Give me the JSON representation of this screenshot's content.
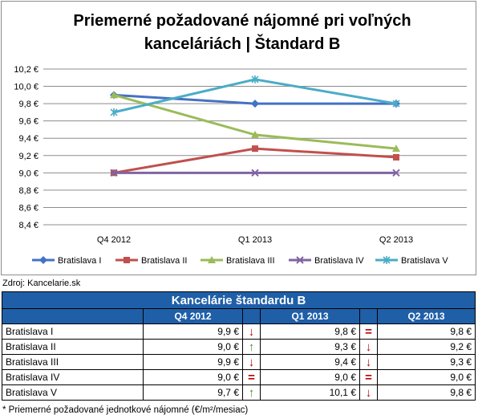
{
  "chart_data": {
    "type": "line",
    "title_line1": "Priemerné požadované nájomné pri voľných",
    "title_line2": "kancelári­ách | Štandard B",
    "categories": [
      "Q4 2012",
      "Q1 2013",
      "Q2 2013"
    ],
    "y_ticks": [
      "8,4 €",
      "8,6 €",
      "8,8 €",
      "9,0 €",
      "9,2 €",
      "9,4 €",
      "9,6 €",
      "9,8 €",
      "10,0 €",
      "10,2 €"
    ],
    "ylim": [
      8.4,
      10.2
    ],
    "grid": true,
    "legend_position": "bottom",
    "series": [
      {
        "name": "Bratislava I",
        "values": [
          9.9,
          9.8,
          9.8
        ],
        "color": "#4472c4",
        "marker": "diamond"
      },
      {
        "name": "Bratislava II",
        "values": [
          9.0,
          9.28,
          9.18
        ],
        "color": "#c0504d",
        "marker": "square"
      },
      {
        "name": "Bratislava III",
        "values": [
          9.9,
          9.44,
          9.28
        ],
        "color": "#9bbb59",
        "marker": "triangle"
      },
      {
        "name": "Bratislava IV",
        "values": [
          9.0,
          9.0,
          9.0
        ],
        "color": "#8064a2",
        "marker": "x"
      },
      {
        "name": "Bratislava V",
        "values": [
          9.7,
          10.08,
          9.8
        ],
        "color": "#4bacc6",
        "marker": "star"
      }
    ]
  },
  "source": "Zdroj: Kancelarie.sk",
  "table": {
    "title": "Kancelárie štandardu B",
    "headers": [
      "Q4 2012",
      "Q1 2013",
      "Q2 2013"
    ],
    "rows": [
      {
        "name": "Bratislava I",
        "q4": "9,9 €",
        "a1": "↓",
        "c1": "down",
        "q1": "9,8 €",
        "a2": "=",
        "c2": "eq",
        "q2": "9,8 €"
      },
      {
        "name": "Bratislava II",
        "q4": "9,0 €",
        "a1": "↑",
        "c1": "up",
        "q1": "9,3 €",
        "a2": "↓",
        "c2": "down",
        "q2": "9,2 €"
      },
      {
        "name": "Bratislava III",
        "q4": "9,9 €",
        "a1": "↓",
        "c1": "down",
        "q1": "9,4 €",
        "a2": "↓",
        "c2": "down",
        "q2": "9,3 €"
      },
      {
        "name": "Bratislava IV",
        "q4": "9,0 €",
        "a1": "=",
        "c1": "eq",
        "q1": "9,0 €",
        "a2": "=",
        "c2": "eq",
        "q2": "9,0 €"
      },
      {
        "name": "Bratislava V",
        "q4": "9,7 €",
        "a1": "↑",
        "c1": "up",
        "q1": "10,1 €",
        "a2": "↓",
        "c2": "down",
        "q2": "9,8 €"
      }
    ]
  },
  "footnote": "* Priemerné požadované jednotkové nájomné (€/m²/mesiac)"
}
